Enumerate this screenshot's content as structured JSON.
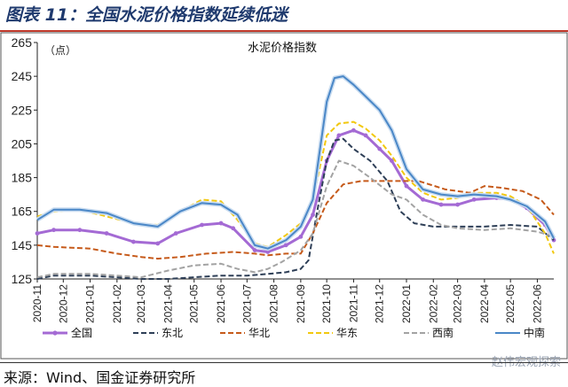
{
  "header": {
    "title": "图表 11：全国水泥价格指数延续低迷"
  },
  "footer": {
    "source": "来源：Wind、国金证券研究所",
    "watermark": "赵伟宏观探索"
  },
  "chart_data": {
    "type": "line",
    "title": "水泥价格指数",
    "unit": "（点）",
    "ylim": [
      125,
      265
    ],
    "yticks": [
      125,
      145,
      165,
      185,
      205,
      225,
      245,
      265
    ],
    "x_start": "2020-11",
    "x_end": "2022-06-20",
    "xticks": [
      "2020-11",
      "2020-12",
      "2021-01",
      "2021-02",
      "2021-03",
      "2021-04",
      "2021-05",
      "2021-06",
      "2021-07",
      "2021-08",
      "2021-09",
      "2021-10",
      "2021-11",
      "2021-12",
      "2022-01",
      "2022-02",
      "2022-03",
      "2022-04",
      "2022-05",
      "2022-06"
    ],
    "grid": false,
    "legend_position": "bottom",
    "series": [
      {
        "name": "全国",
        "color": "#a46ad4",
        "style": "solid-marker",
        "points": [
          [
            "2020-11-01",
            152
          ],
          [
            "2020-11-20",
            154
          ],
          [
            "2020-12-20",
            154
          ],
          [
            "2021-01-20",
            152
          ],
          [
            "2021-02-20",
            147
          ],
          [
            "2021-03-20",
            146
          ],
          [
            "2021-04-10",
            152
          ],
          [
            "2021-05-10",
            157
          ],
          [
            "2021-06-01",
            158
          ],
          [
            "2021-06-15",
            155
          ],
          [
            "2021-07-10",
            142
          ],
          [
            "2021-07-25",
            141
          ],
          [
            "2021-08-15",
            145
          ],
          [
            "2021-09-01",
            150
          ],
          [
            "2021-09-15",
            163
          ],
          [
            "2021-10-01",
            195
          ],
          [
            "2021-10-15",
            210
          ],
          [
            "2021-11-01",
            213
          ],
          [
            "2021-11-15",
            210
          ],
          [
            "2021-12-01",
            202
          ],
          [
            "2021-12-15",
            195
          ],
          [
            "2022-01-01",
            180
          ],
          [
            "2022-01-20",
            172
          ],
          [
            "2022-02-10",
            169
          ],
          [
            "2022-03-01",
            169
          ],
          [
            "2022-03-20",
            172
          ],
          [
            "2022-04-15",
            173
          ],
          [
            "2022-05-01",
            172
          ],
          [
            "2022-05-20",
            167
          ],
          [
            "2022-06-10",
            157
          ],
          [
            "2022-06-20",
            148
          ]
        ]
      },
      {
        "name": "东北",
        "color": "#2e3f57",
        "style": "dash",
        "points": [
          [
            "2020-11-01",
            125
          ],
          [
            "2020-11-20",
            127
          ],
          [
            "2021-01-01",
            127
          ],
          [
            "2021-02-01",
            126
          ],
          [
            "2021-03-01",
            125
          ],
          [
            "2021-04-01",
            125
          ],
          [
            "2021-05-01",
            126
          ],
          [
            "2021-06-01",
            127
          ],
          [
            "2021-07-01",
            127
          ],
          [
            "2021-07-25",
            128
          ],
          [
            "2021-08-15",
            129
          ],
          [
            "2021-09-01",
            131
          ],
          [
            "2021-09-10",
            136
          ],
          [
            "2021-09-20",
            165
          ],
          [
            "2021-10-01",
            195
          ],
          [
            "2021-10-10",
            207
          ],
          [
            "2021-10-20",
            208
          ],
          [
            "2021-11-01",
            202
          ],
          [
            "2021-11-20",
            195
          ],
          [
            "2021-12-10",
            183
          ],
          [
            "2021-12-25",
            165
          ],
          [
            "2022-01-10",
            158
          ],
          [
            "2022-02-01",
            156
          ],
          [
            "2022-03-01",
            156
          ],
          [
            "2022-04-01",
            156
          ],
          [
            "2022-05-01",
            157
          ],
          [
            "2022-06-01",
            156
          ],
          [
            "2022-06-20",
            148
          ]
        ]
      },
      {
        "name": "华北",
        "color": "#c65a1a",
        "style": "dash",
        "points": [
          [
            "2020-11-01",
            145
          ],
          [
            "2020-11-20",
            144
          ],
          [
            "2021-01-01",
            143
          ],
          [
            "2021-02-01",
            140
          ],
          [
            "2021-03-01",
            138
          ],
          [
            "2021-03-20",
            137
          ],
          [
            "2021-04-15",
            138
          ],
          [
            "2021-05-15",
            140
          ],
          [
            "2021-06-15",
            141
          ],
          [
            "2021-07-10",
            140
          ],
          [
            "2021-07-25",
            139
          ],
          [
            "2021-08-15",
            140
          ],
          [
            "2021-09-01",
            140
          ],
          [
            "2021-09-15",
            152
          ],
          [
            "2021-10-01",
            170
          ],
          [
            "2021-10-20",
            181
          ],
          [
            "2021-11-10",
            183
          ],
          [
            "2021-12-15",
            183
          ],
          [
            "2022-01-15",
            183
          ],
          [
            "2022-02-15",
            178
          ],
          [
            "2022-03-15",
            176
          ],
          [
            "2022-04-01",
            180
          ],
          [
            "2022-04-20",
            179
          ],
          [
            "2022-05-15",
            177
          ],
          [
            "2022-06-05",
            172
          ],
          [
            "2022-06-20",
            163
          ]
        ]
      },
      {
        "name": "华东",
        "color": "#f2c80f",
        "style": "dash",
        "points": [
          [
            "2020-11-01",
            162
          ],
          [
            "2020-11-20",
            165
          ],
          [
            "2020-12-20",
            166
          ],
          [
            "2021-01-20",
            162
          ],
          [
            "2021-02-20",
            158
          ],
          [
            "2021-03-20",
            157
          ],
          [
            "2021-04-15",
            165
          ],
          [
            "2021-05-10",
            172
          ],
          [
            "2021-06-01",
            171
          ],
          [
            "2021-06-20",
            160
          ],
          [
            "2021-07-10",
            146
          ],
          [
            "2021-07-25",
            144
          ],
          [
            "2021-08-15",
            151
          ],
          [
            "2021-09-01",
            158
          ],
          [
            "2021-09-15",
            172
          ],
          [
            "2021-10-01",
            210
          ],
          [
            "2021-10-15",
            217
          ],
          [
            "2021-11-01",
            218
          ],
          [
            "2021-11-15",
            214
          ],
          [
            "2021-12-01",
            207
          ],
          [
            "2021-12-15",
            198
          ],
          [
            "2022-01-01",
            185
          ],
          [
            "2022-01-20",
            176
          ],
          [
            "2022-02-10",
            172
          ],
          [
            "2022-03-01",
            173
          ],
          [
            "2022-03-20",
            176
          ],
          [
            "2022-04-15",
            176
          ],
          [
            "2022-05-01",
            174
          ],
          [
            "2022-05-20",
            168
          ],
          [
            "2022-06-10",
            152
          ],
          [
            "2022-06-20",
            140
          ]
        ]
      },
      {
        "name": "西南",
        "color": "#a3a3a3",
        "style": "dash",
        "points": [
          [
            "2020-11-01",
            126
          ],
          [
            "2020-11-20",
            128
          ],
          [
            "2021-01-01",
            128
          ],
          [
            "2021-02-01",
            127
          ],
          [
            "2021-03-01",
            126
          ],
          [
            "2021-04-01",
            130
          ],
          [
            "2021-05-01",
            133
          ],
          [
            "2021-06-01",
            134
          ],
          [
            "2021-06-20",
            131
          ],
          [
            "2021-07-10",
            129
          ],
          [
            "2021-07-25",
            131
          ],
          [
            "2021-08-10",
            135
          ],
          [
            "2021-09-01",
            142
          ],
          [
            "2021-09-15",
            152
          ],
          [
            "2021-10-01",
            180
          ],
          [
            "2021-10-15",
            195
          ],
          [
            "2021-11-01",
            192
          ],
          [
            "2021-11-20",
            185
          ],
          [
            "2021-12-15",
            175
          ],
          [
            "2022-01-01",
            172
          ],
          [
            "2022-01-20",
            163
          ],
          [
            "2022-02-10",
            157
          ],
          [
            "2022-03-01",
            155
          ],
          [
            "2022-04-01",
            154
          ],
          [
            "2022-05-01",
            155
          ],
          [
            "2022-06-01",
            153
          ],
          [
            "2022-06-20",
            150
          ]
        ]
      },
      {
        "name": "中南",
        "color": "#4a87c7",
        "style": "solid",
        "points": [
          [
            "2020-11-01",
            160
          ],
          [
            "2020-11-20",
            166
          ],
          [
            "2020-12-20",
            166
          ],
          [
            "2021-01-20",
            164
          ],
          [
            "2021-02-20",
            158
          ],
          [
            "2021-03-20",
            156
          ],
          [
            "2021-04-15",
            165
          ],
          [
            "2021-05-10",
            170
          ],
          [
            "2021-06-01",
            169
          ],
          [
            "2021-06-20",
            163
          ],
          [
            "2021-07-10",
            145
          ],
          [
            "2021-07-25",
            143
          ],
          [
            "2021-08-15",
            148
          ],
          [
            "2021-09-01",
            156
          ],
          [
            "2021-09-15",
            172
          ],
          [
            "2021-10-01",
            230
          ],
          [
            "2021-10-10",
            244
          ],
          [
            "2021-10-20",
            245
          ],
          [
            "2021-11-01",
            240
          ],
          [
            "2021-11-15",
            233
          ],
          [
            "2021-12-01",
            225
          ],
          [
            "2021-12-15",
            213
          ],
          [
            "2022-01-01",
            190
          ],
          [
            "2022-01-20",
            178
          ],
          [
            "2022-02-10",
            175
          ],
          [
            "2022-03-01",
            174
          ],
          [
            "2022-03-20",
            175
          ],
          [
            "2022-04-15",
            174
          ],
          [
            "2022-05-01",
            172
          ],
          [
            "2022-05-20",
            168
          ],
          [
            "2022-06-10",
            159
          ],
          [
            "2022-06-20",
            149
          ]
        ]
      }
    ]
  }
}
